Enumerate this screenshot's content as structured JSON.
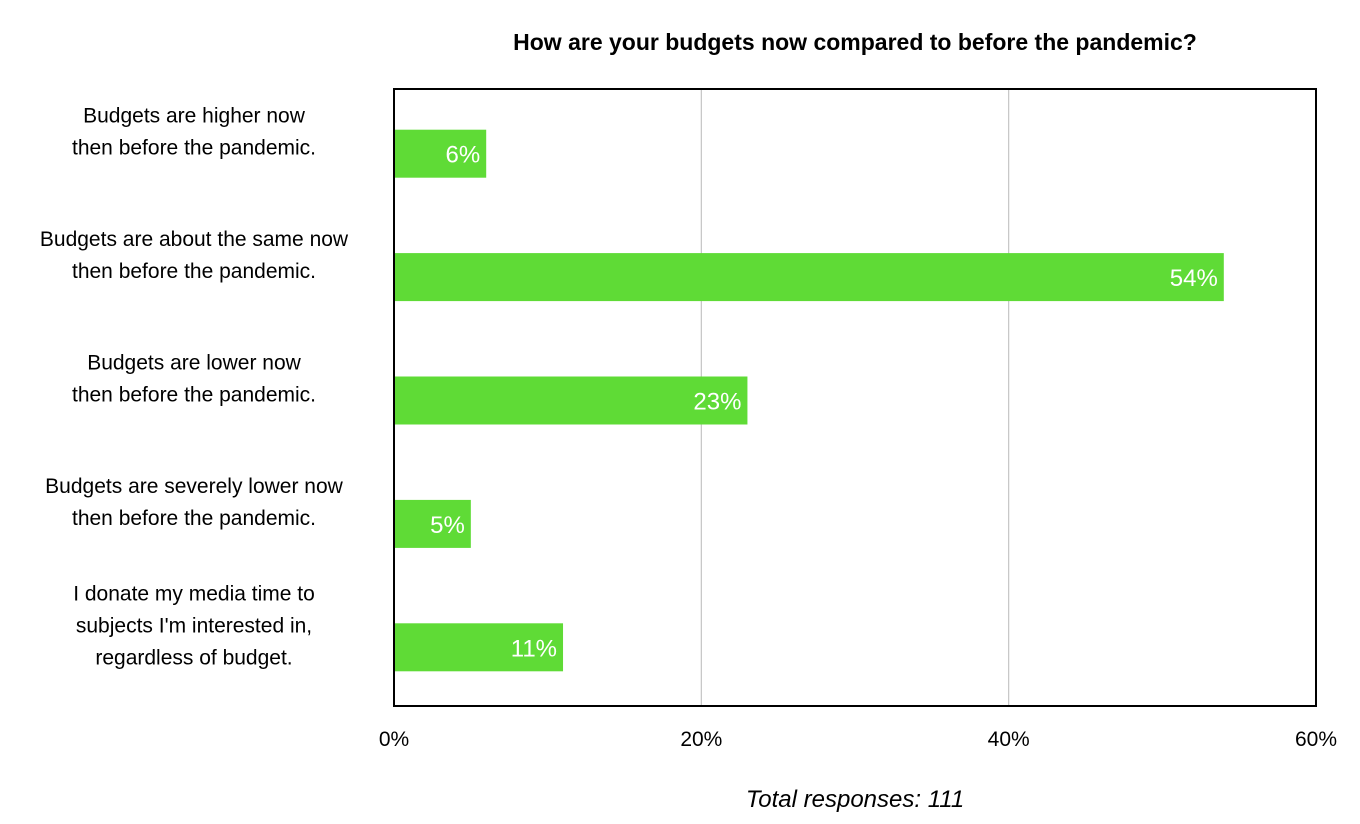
{
  "chart_data": {
    "type": "bar",
    "orientation": "horizontal",
    "title": "How are your budgets now compared to before the pandemic?",
    "categories": [
      [
        "Budgets are higher now",
        "then before the pandemic."
      ],
      [
        "Budgets are about the same now",
        "then before the pandemic."
      ],
      [
        "Budgets are lower now",
        "then before the pandemic."
      ],
      [
        "Budgets are severely lower now",
        "then before the pandemic."
      ],
      [
        "I donate my media time to",
        "subjects I'm interested in,",
        "regardless of budget."
      ]
    ],
    "values": [
      6,
      54,
      23,
      5,
      11
    ],
    "value_labels": [
      "6%",
      "54%",
      "23%",
      "5%",
      "11%"
    ],
    "xlim": [
      0,
      60
    ],
    "x_ticks": [
      0,
      20,
      40,
      60
    ],
    "x_tick_labels": [
      "0%",
      "20%",
      "40%",
      "60%"
    ],
    "grid": true,
    "legend": "none",
    "bar_color": "#5fdb36",
    "footnote": "Total responses: 111"
  }
}
